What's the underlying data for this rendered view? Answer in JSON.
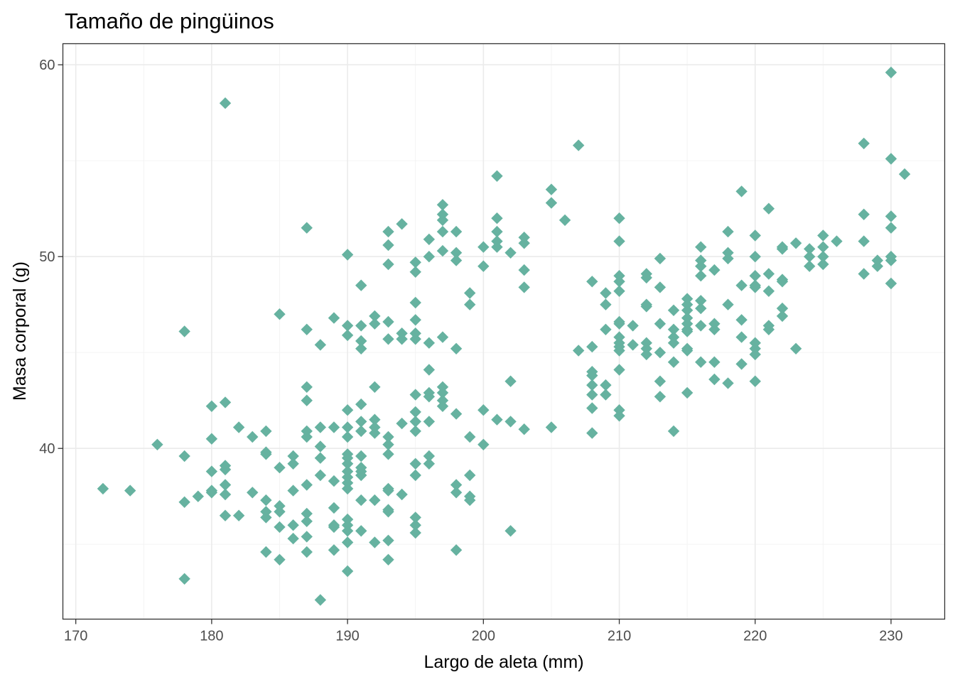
{
  "chart_data": {
    "type": "scatter",
    "title": "Tamaño de pingüinos",
    "xlabel": "Largo de aleta (mm)",
    "ylabel": "Masa corporal (g)",
    "xlim": [
      169.05,
      233.95
    ],
    "ylim": [
      31.1,
      61.1
    ],
    "x_ticks": [
      170,
      180,
      190,
      200,
      210,
      220,
      230
    ],
    "y_ticks": [
      40,
      50,
      60
    ],
    "grid": true,
    "legend": "none",
    "marker": "diamond",
    "point_color": "#66b2a0",
    "points": [
      [
        172,
        37.9
      ],
      [
        174,
        37.8
      ],
      [
        176,
        40.2
      ],
      [
        178,
        46.1
      ],
      [
        178,
        39.6
      ],
      [
        178,
        37.2
      ],
      [
        178,
        33.2
      ],
      [
        179,
        37.5
      ],
      [
        180,
        42.2
      ],
      [
        180,
        40.5
      ],
      [
        180,
        38.8
      ],
      [
        180,
        37.8
      ],
      [
        180,
        37.7
      ],
      [
        181,
        58.0
      ],
      [
        181,
        42.4
      ],
      [
        181,
        39.1
      ],
      [
        181,
        38.9
      ],
      [
        181,
        38.1
      ],
      [
        181,
        37.6
      ],
      [
        181,
        36.5
      ],
      [
        182,
        41.1
      ],
      [
        182,
        36.5
      ],
      [
        183,
        40.6
      ],
      [
        183,
        37.7
      ],
      [
        184,
        40.9
      ],
      [
        184,
        39.8
      ],
      [
        184,
        39.7
      ],
      [
        184,
        37.3
      ],
      [
        184,
        36.7
      ],
      [
        184,
        36.4
      ],
      [
        184,
        34.6
      ],
      [
        185,
        47.0
      ],
      [
        185,
        39.0
      ],
      [
        185,
        37.0
      ],
      [
        185,
        36.7
      ],
      [
        185,
        35.9
      ],
      [
        185,
        34.2
      ],
      [
        186,
        39.6
      ],
      [
        186,
        39.2
      ],
      [
        186,
        37.8
      ],
      [
        186,
        36.0
      ],
      [
        186,
        35.3
      ],
      [
        187,
        51.5
      ],
      [
        187,
        46.2
      ],
      [
        187,
        43.2
      ],
      [
        187,
        42.5
      ],
      [
        187,
        40.9
      ],
      [
        187,
        40.6
      ],
      [
        187,
        38.1
      ],
      [
        187,
        36.6
      ],
      [
        187,
        36.2
      ],
      [
        187,
        35.4
      ],
      [
        187,
        34.6
      ],
      [
        188,
        45.4
      ],
      [
        188,
        41.1
      ],
      [
        188,
        40.1
      ],
      [
        188,
        39.5
      ],
      [
        188,
        38.6
      ],
      [
        188,
        32.1
      ],
      [
        189,
        46.8
      ],
      [
        189,
        41.1
      ],
      [
        189,
        38.3
      ],
      [
        189,
        36.9
      ],
      [
        189,
        36.0
      ],
      [
        189,
        35.9
      ],
      [
        189,
        34.7
      ],
      [
        190,
        50.1
      ],
      [
        190,
        46.4
      ],
      [
        190,
        45.9
      ],
      [
        190,
        42.0
      ],
      [
        190,
        41.1
      ],
      [
        190,
        40.6
      ],
      [
        190,
        39.7
      ],
      [
        190,
        39.5
      ],
      [
        190,
        39.2
      ],
      [
        190,
        38.8
      ],
      [
        190,
        38.5
      ],
      [
        190,
        38.2
      ],
      [
        190,
        37.9
      ],
      [
        190,
        36.3
      ],
      [
        190,
        36.0
      ],
      [
        190,
        35.7
      ],
      [
        190,
        35.1
      ],
      [
        190,
        33.6
      ],
      [
        191,
        48.5
      ],
      [
        191,
        46.4
      ],
      [
        191,
        45.6
      ],
      [
        191,
        45.2
      ],
      [
        191,
        42.3
      ],
      [
        191,
        41.4
      ],
      [
        191,
        40.9
      ],
      [
        191,
        39.6
      ],
      [
        191,
        39.0
      ],
      [
        191,
        38.8
      ],
      [
        191,
        38.6
      ],
      [
        191,
        37.3
      ],
      [
        191,
        35.7
      ],
      [
        192,
        46.9
      ],
      [
        192,
        46.5
      ],
      [
        192,
        43.2
      ],
      [
        192,
        41.5
      ],
      [
        192,
        41.1
      ],
      [
        192,
        40.8
      ],
      [
        192,
        37.3
      ],
      [
        192,
        35.1
      ],
      [
        193,
        51.3
      ],
      [
        193,
        50.6
      ],
      [
        193,
        49.6
      ],
      [
        193,
        46.6
      ],
      [
        193,
        45.7
      ],
      [
        193,
        40.6
      ],
      [
        193,
        40.2
      ],
      [
        193,
        39.7
      ],
      [
        193,
        37.9
      ],
      [
        193,
        37.8
      ],
      [
        193,
        36.8
      ],
      [
        193,
        36.7
      ],
      [
        193,
        35.2
      ],
      [
        193,
        34.2
      ],
      [
        194,
        51.7
      ],
      [
        194,
        46.0
      ],
      [
        194,
        45.7
      ],
      [
        194,
        41.3
      ],
      [
        194,
        37.6
      ],
      [
        195,
        49.7
      ],
      [
        195,
        49.2
      ],
      [
        195,
        47.6
      ],
      [
        195,
        46.7
      ],
      [
        195,
        46.0
      ],
      [
        195,
        45.7
      ],
      [
        195,
        42.8
      ],
      [
        195,
        41.9
      ],
      [
        195,
        41.4
      ],
      [
        195,
        40.9
      ],
      [
        195,
        39.2
      ],
      [
        195,
        38.6
      ],
      [
        195,
        36.4
      ],
      [
        195,
        36.0
      ],
      [
        195,
        35.6
      ],
      [
        196,
        50.9
      ],
      [
        196,
        50.0
      ],
      [
        196,
        45.5
      ],
      [
        196,
        44.1
      ],
      [
        196,
        42.9
      ],
      [
        196,
        42.7
      ],
      [
        196,
        41.4
      ],
      [
        196,
        39.6
      ],
      [
        196,
        39.2
      ],
      [
        197,
        52.7
      ],
      [
        197,
        52.2
      ],
      [
        197,
        51.9
      ],
      [
        197,
        51.3
      ],
      [
        197,
        50.3
      ],
      [
        197,
        45.8
      ],
      [
        197,
        43.2
      ],
      [
        197,
        42.9
      ],
      [
        197,
        42.5
      ],
      [
        197,
        42.2
      ],
      [
        198,
        51.3
      ],
      [
        198,
        50.2
      ],
      [
        198,
        49.8
      ],
      [
        198,
        45.2
      ],
      [
        198,
        41.8
      ],
      [
        198,
        38.1
      ],
      [
        198,
        37.7
      ],
      [
        198,
        34.7
      ],
      [
        199,
        48.1
      ],
      [
        199,
        47.5
      ],
      [
        199,
        40.6
      ],
      [
        199,
        38.6
      ],
      [
        199,
        37.5
      ],
      [
        199,
        37.3
      ],
      [
        200,
        50.5
      ],
      [
        200,
        49.5
      ],
      [
        200,
        42.0
      ],
      [
        200,
        40.2
      ],
      [
        201,
        54.2
      ],
      [
        201,
        52.0
      ],
      [
        201,
        51.3
      ],
      [
        201,
        50.5
      ],
      [
        201,
        50.8
      ],
      [
        201,
        41.5
      ],
      [
        202,
        50.2
      ],
      [
        202,
        43.5
      ],
      [
        202,
        41.4
      ],
      [
        202,
        35.7
      ],
      [
        203,
        51.0
      ],
      [
        203,
        50.7
      ],
      [
        203,
        49.3
      ],
      [
        203,
        48.4
      ],
      [
        203,
        41.0
      ],
      [
        205,
        53.5
      ],
      [
        205,
        52.8
      ],
      [
        205,
        41.1
      ],
      [
        206,
        51.9
      ],
      [
        207,
        55.8
      ],
      [
        207,
        45.1
      ],
      [
        208,
        48.7
      ],
      [
        208,
        45.3
      ],
      [
        208,
        44.0
      ],
      [
        208,
        43.8
      ],
      [
        208,
        43.3
      ],
      [
        208,
        42.8
      ],
      [
        208,
        42.1
      ],
      [
        208,
        40.8
      ],
      [
        209,
        48.1
      ],
      [
        209,
        47.5
      ],
      [
        209,
        46.2
      ],
      [
        209,
        43.3
      ],
      [
        209,
        42.8
      ],
      [
        210,
        52.0
      ],
      [
        210,
        50.8
      ],
      [
        210,
        49.0
      ],
      [
        210,
        48.7
      ],
      [
        210,
        48.2
      ],
      [
        210,
        46.6
      ],
      [
        210,
        46.5
      ],
      [
        210,
        45.8
      ],
      [
        210,
        45.5
      ],
      [
        210,
        45.3
      ],
      [
        210,
        45.1
      ],
      [
        210,
        44.1
      ],
      [
        210,
        42.0
      ],
      [
        210,
        41.7
      ],
      [
        211,
        46.4
      ],
      [
        211,
        45.4
      ],
      [
        212,
        49.1
      ],
      [
        212,
        48.9
      ],
      [
        212,
        47.5
      ],
      [
        212,
        47.4
      ],
      [
        212,
        45.5
      ],
      [
        212,
        45.2
      ],
      [
        212,
        44.9
      ],
      [
        213,
        49.9
      ],
      [
        213,
        48.4
      ],
      [
        213,
        46.5
      ],
      [
        213,
        45.0
      ],
      [
        213,
        43.5
      ],
      [
        213,
        42.7
      ],
      [
        214,
        47.2
      ],
      [
        214,
        46.2
      ],
      [
        214,
        45.8
      ],
      [
        214,
        45.5
      ],
      [
        214,
        44.5
      ],
      [
        214,
        40.9
      ],
      [
        215,
        47.8
      ],
      [
        215,
        47.5
      ],
      [
        215,
        47.2
      ],
      [
        215,
        46.8
      ],
      [
        215,
        46.5
      ],
      [
        215,
        46.2
      ],
      [
        215,
        46.1
      ],
      [
        215,
        45.2
      ],
      [
        215,
        45.1
      ],
      [
        215,
        42.9
      ],
      [
        216,
        50.5
      ],
      [
        216,
        49.8
      ],
      [
        216,
        49.5
      ],
      [
        216,
        49.0
      ],
      [
        216,
        47.7
      ],
      [
        216,
        47.3
      ],
      [
        216,
        46.4
      ],
      [
        216,
        44.5
      ],
      [
        217,
        49.3
      ],
      [
        217,
        46.5
      ],
      [
        217,
        46.2
      ],
      [
        217,
        44.5
      ],
      [
        217,
        43.6
      ],
      [
        218,
        51.3
      ],
      [
        218,
        50.2
      ],
      [
        218,
        49.9
      ],
      [
        218,
        47.5
      ],
      [
        218,
        43.4
      ],
      [
        219,
        53.4
      ],
      [
        219,
        48.5
      ],
      [
        219,
        46.7
      ],
      [
        219,
        45.8
      ],
      [
        219,
        44.4
      ],
      [
        220,
        51.1
      ],
      [
        220,
        50.0
      ],
      [
        220,
        49.0
      ],
      [
        220,
        48.5
      ],
      [
        220,
        48.4
      ],
      [
        220,
        45.5
      ],
      [
        220,
        45.2
      ],
      [
        220,
        44.9
      ],
      [
        220,
        43.5
      ],
      [
        221,
        52.5
      ],
      [
        221,
        49.1
      ],
      [
        221,
        48.2
      ],
      [
        221,
        46.4
      ],
      [
        221,
        46.2
      ],
      [
        222,
        50.5
      ],
      [
        222,
        50.4
      ],
      [
        222,
        48.8
      ],
      [
        222,
        48.7
      ],
      [
        222,
        47.3
      ],
      [
        222,
        46.9
      ],
      [
        223,
        50.7
      ],
      [
        223,
        45.2
      ],
      [
        224,
        50.4
      ],
      [
        224,
        50.0
      ],
      [
        224,
        49.5
      ],
      [
        225,
        51.1
      ],
      [
        225,
        50.5
      ],
      [
        225,
        50.0
      ],
      [
        225,
        49.6
      ],
      [
        226,
        50.8
      ],
      [
        228,
        55.9
      ],
      [
        228,
        52.2
      ],
      [
        228,
        50.8
      ],
      [
        228,
        49.1
      ],
      [
        229,
        49.8
      ],
      [
        229,
        49.5
      ],
      [
        230,
        59.6
      ],
      [
        230,
        55.1
      ],
      [
        230,
        52.1
      ],
      [
        230,
        51.5
      ],
      [
        230,
        50.0
      ],
      [
        230,
        49.8
      ],
      [
        230,
        48.6
      ],
      [
        231,
        54.3
      ]
    ]
  }
}
